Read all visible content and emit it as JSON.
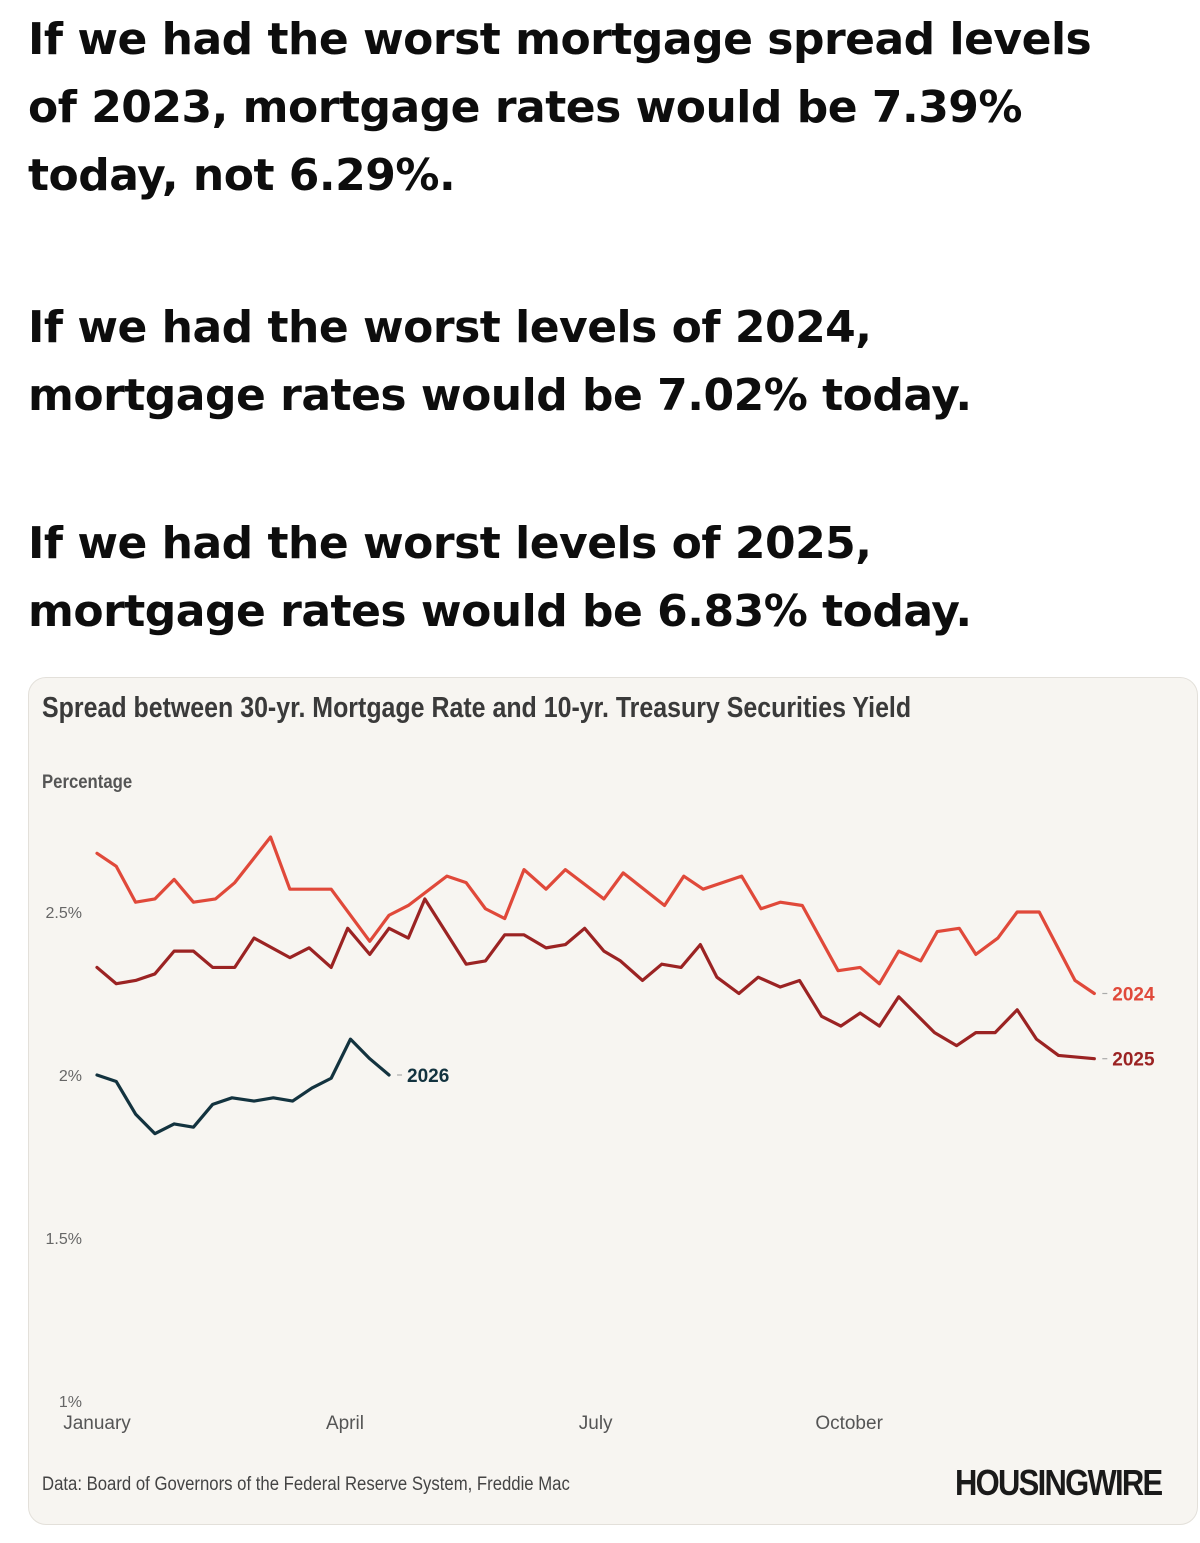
{
  "headline": {
    "paragraphs": [
      [
        "If we had the worst mortgage spread levels",
        "of 2023, mortgage rates would be 7.39%",
        "today, not 6.29%."
      ],
      [
        "If we had the worst levels of 2024,",
        "mortgage rates would be 7.02% today."
      ],
      [
        "If we had the worst levels of 2025,",
        "mortgage rates would be 6.83% today."
      ]
    ]
  },
  "footer": {
    "source": "Data: Board of Governors of the Federal Reserve System, Freddie Mac",
    "logo": "HOUSINGWIRE"
  },
  "chart_data": {
    "type": "line",
    "title": "Spread between 30-yr. Mortgage Rate and 10-yr. Treasury Securities Yield",
    "ylabel": "Percentage",
    "xlabel": "",
    "ylim": [
      1,
      2.75
    ],
    "yticks": [
      {
        "value": 2.5,
        "label": "2.5%"
      },
      {
        "value": 2,
        "label": "2%"
      },
      {
        "value": 1.5,
        "label": "1.5%"
      },
      {
        "value": 1,
        "label": "1%"
      }
    ],
    "xticks": [
      {
        "date": "01-01",
        "label": "January"
      },
      {
        "date": "04-01",
        "label": "April"
      },
      {
        "date": "07-01",
        "label": "July"
      },
      {
        "date": "10-01",
        "label": "October"
      }
    ],
    "grid": false,
    "legend": "direct labels at line ends",
    "series": [
      {
        "name": "2024",
        "color": "#e0493a",
        "points": [
          [
            "01-01",
            2.68
          ],
          [
            "01-08",
            2.64
          ],
          [
            "01-15",
            2.53
          ],
          [
            "01-22",
            2.54
          ],
          [
            "01-29",
            2.6
          ],
          [
            "02-05",
            2.53
          ],
          [
            "02-13",
            2.54
          ],
          [
            "02-20",
            2.59
          ],
          [
            "03-05",
            2.73
          ],
          [
            "03-12",
            2.57
          ],
          [
            "03-27",
            2.57
          ],
          [
            "04-10",
            2.41
          ],
          [
            "04-17",
            2.49
          ],
          [
            "04-24",
            2.52
          ],
          [
            "05-08",
            2.61
          ],
          [
            "05-15",
            2.59
          ],
          [
            "05-22",
            2.51
          ],
          [
            "05-29",
            2.48
          ],
          [
            "06-05",
            2.63
          ],
          [
            "06-13",
            2.57
          ],
          [
            "06-20",
            2.63
          ],
          [
            "07-04",
            2.54
          ],
          [
            "07-11",
            2.62
          ],
          [
            "07-26",
            2.52
          ],
          [
            "08-02",
            2.61
          ],
          [
            "08-09",
            2.57
          ],
          [
            "08-23",
            2.61
          ],
          [
            "08-30",
            2.51
          ],
          [
            "09-06",
            2.53
          ],
          [
            "09-14",
            2.52
          ],
          [
            "09-27",
            2.32
          ],
          [
            "10-05",
            2.33
          ],
          [
            "10-12",
            2.28
          ],
          [
            "10-19",
            2.38
          ],
          [
            "10-27",
            2.35
          ],
          [
            "11-02",
            2.44
          ],
          [
            "11-10",
            2.45
          ],
          [
            "11-16",
            2.37
          ],
          [
            "11-24",
            2.42
          ],
          [
            "12-01",
            2.5
          ],
          [
            "12-09",
            2.5
          ],
          [
            "12-22",
            2.29
          ],
          [
            "12-29",
            2.25
          ]
        ]
      },
      {
        "name": "2025",
        "color": "#9b2323",
        "points": [
          [
            "01-01",
            2.33
          ],
          [
            "01-08",
            2.28
          ],
          [
            "01-15",
            2.29
          ],
          [
            "01-22",
            2.31
          ],
          [
            "01-29",
            2.38
          ],
          [
            "02-05",
            2.38
          ],
          [
            "02-12",
            2.33
          ],
          [
            "02-20",
            2.33
          ],
          [
            "02-27",
            2.42
          ],
          [
            "03-12",
            2.36
          ],
          [
            "03-19",
            2.39
          ],
          [
            "03-27",
            2.33
          ],
          [
            "04-02",
            2.45
          ],
          [
            "04-10",
            2.37
          ],
          [
            "04-17",
            2.45
          ],
          [
            "04-24",
            2.42
          ],
          [
            "04-30",
            2.54
          ],
          [
            "05-15",
            2.34
          ],
          [
            "05-22",
            2.35
          ],
          [
            "05-29",
            2.43
          ],
          [
            "06-05",
            2.43
          ],
          [
            "06-13",
            2.39
          ],
          [
            "06-20",
            2.4
          ],
          [
            "06-27",
            2.45
          ],
          [
            "07-04",
            2.38
          ],
          [
            "07-10",
            2.35
          ],
          [
            "07-18",
            2.29
          ],
          [
            "07-25",
            2.34
          ],
          [
            "08-01",
            2.33
          ],
          [
            "08-08",
            2.4
          ],
          [
            "08-14",
            2.3
          ],
          [
            "08-22",
            2.25
          ],
          [
            "08-29",
            2.3
          ],
          [
            "09-06",
            2.27
          ],
          [
            "09-13",
            2.29
          ],
          [
            "09-21",
            2.18
          ],
          [
            "09-28",
            2.15
          ],
          [
            "10-05",
            2.19
          ],
          [
            "10-12",
            2.15
          ],
          [
            "10-19",
            2.24
          ],
          [
            "11-01",
            2.13
          ],
          [
            "11-09",
            2.09
          ],
          [
            "11-16",
            2.13
          ],
          [
            "11-23",
            2.13
          ],
          [
            "12-01",
            2.2
          ],
          [
            "12-08",
            2.11
          ],
          [
            "12-16",
            2.06
          ],
          [
            "12-29",
            2.05
          ]
        ]
      },
      {
        "name": "2026",
        "color": "#13333f",
        "points": [
          [
            "01-01",
            2.0
          ],
          [
            "01-08",
            1.98
          ],
          [
            "01-15",
            1.88
          ],
          [
            "01-22",
            1.82
          ],
          [
            "01-29",
            1.85
          ],
          [
            "02-05",
            1.84
          ],
          [
            "02-12",
            1.91
          ],
          [
            "02-19",
            1.93
          ],
          [
            "02-27",
            1.92
          ],
          [
            "03-06",
            1.93
          ],
          [
            "03-13",
            1.92
          ],
          [
            "03-20",
            1.96
          ],
          [
            "03-27",
            1.99
          ],
          [
            "04-03",
            2.11
          ],
          [
            "04-10",
            2.05
          ],
          [
            "04-17",
            2.0
          ]
        ]
      }
    ]
  }
}
